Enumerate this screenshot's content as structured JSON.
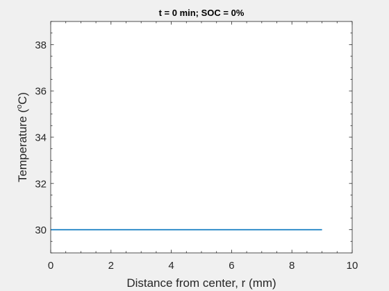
{
  "chart_data": {
    "type": "line",
    "title": "t = 0 min; SOC = 0%",
    "xlabel": "Distance from center, r (mm)",
    "ylabel_parts": [
      "Temperature (",
      "o",
      "C)"
    ],
    "xlim": [
      0,
      10
    ],
    "ylim": [
      29,
      39
    ],
    "xticks": [
      0,
      2,
      4,
      6,
      8,
      10
    ],
    "yticks": [
      30,
      32,
      34,
      36,
      38
    ],
    "grid": false,
    "series": [
      {
        "color": "#0072BD",
        "x": [
          0,
          9
        ],
        "y": [
          30,
          30
        ]
      }
    ]
  }
}
